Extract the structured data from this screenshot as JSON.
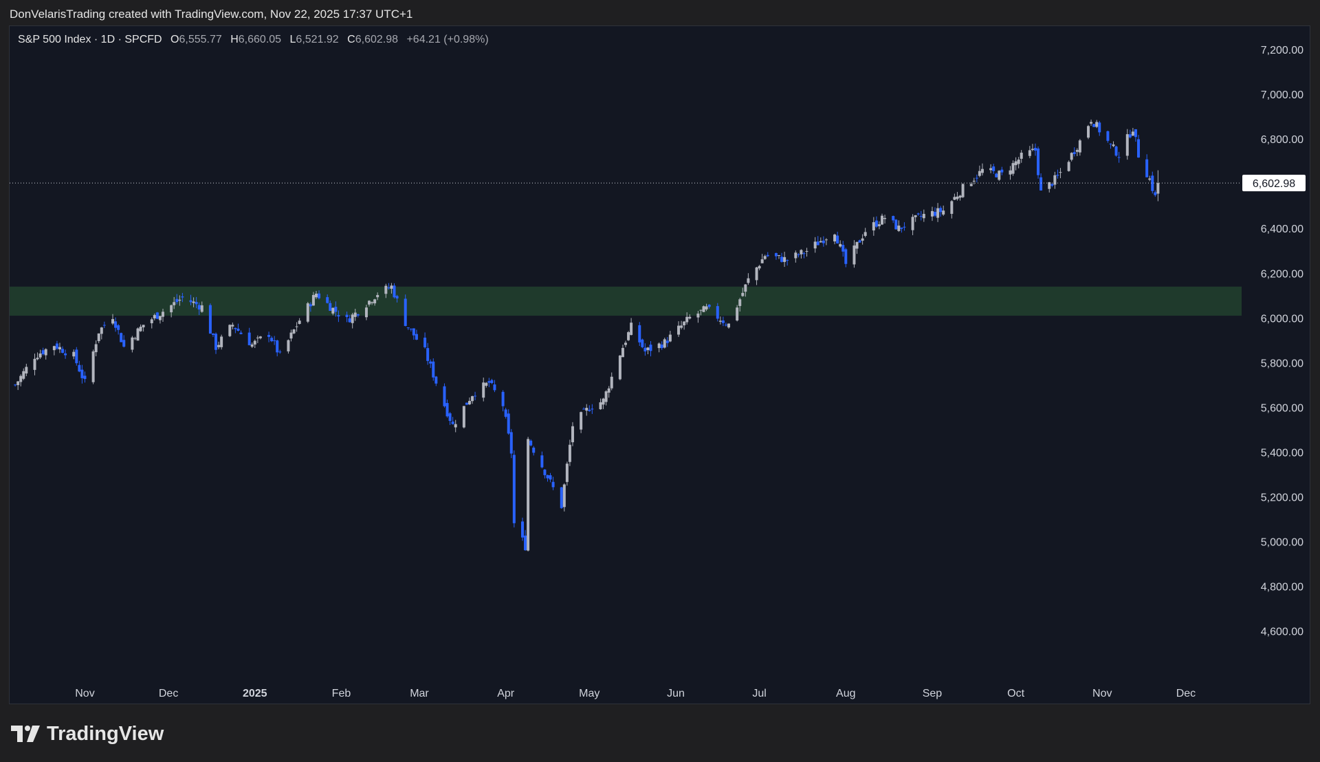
{
  "header": {
    "attribution": "DonVelarisTrading created with TradingView.com, Nov 22, 2025 17:37 UTC+1"
  },
  "legend": {
    "symbol": "S&P 500 Index · 1D · SPCFD",
    "open_label": "O",
    "open": "6,555.77",
    "high_label": "H",
    "high": "6,660.05",
    "low_label": "L",
    "low": "6,521.92",
    "close_label": "C",
    "close": "6,602.98",
    "change": "+64.21 (+0.98%)"
  },
  "footer": {
    "brand": "TradingView"
  },
  "colors": {
    "up": "#b2b5be",
    "down": "#2962ff",
    "zone": "#1f3a2c",
    "background": "#131722"
  },
  "chart_data": {
    "type": "candlestick",
    "title": "S&P 500 Index · 1D · SPCFD",
    "ylim": [
      4500,
      7300
    ],
    "y_ticks": [
      "7,200.00",
      "7,000.00",
      "6,800.00",
      "6,600.00",
      "6,400.00",
      "6,200.00",
      "6,000.00",
      "5,800.00",
      "5,600.00",
      "5,400.00",
      "5,200.00",
      "5,000.00",
      "4,800.00",
      "4,600.00"
    ],
    "y_tick_values": [
      7200,
      7000,
      6800,
      6600,
      6400,
      6200,
      6000,
      5800,
      5600,
      5400,
      5200,
      5000,
      4800,
      4600
    ],
    "x_ticks": [
      "Nov",
      "Dec",
      "2025",
      "Feb",
      "Mar",
      "Apr",
      "May",
      "Jun",
      "Jul",
      "Aug",
      "Sep",
      "Oct",
      "Nov",
      "Dec"
    ],
    "x_tick_dates": [
      "2024-11-01",
      "2024-12-01",
      "2025-01-01",
      "2025-02-01",
      "2025-03-01",
      "2025-04-01",
      "2025-05-01",
      "2025-06-01",
      "2025-07-01",
      "2025-08-01",
      "2025-09-01",
      "2025-10-01",
      "2025-11-01",
      "2025-12-01"
    ],
    "x_tick_bold": [
      false,
      false,
      true,
      false,
      false,
      false,
      false,
      false,
      false,
      false,
      false,
      false,
      false,
      false
    ],
    "x_range": [
      "2024-10-05",
      "2025-12-21"
    ],
    "last_price_label": "6,602.98",
    "last_price": 6602.98,
    "zone": {
      "low": 6010,
      "high": 6140
    },
    "close_points": [
      [
        "2024-10-07",
        5700
      ],
      [
        "2024-10-14",
        5830
      ],
      [
        "2024-10-21",
        5880
      ],
      [
        "2024-10-28",
        5830
      ],
      [
        "2024-11-01",
        5710
      ],
      [
        "2024-11-06",
        5940
      ],
      [
        "2024-11-11",
        6010
      ],
      [
        "2024-11-15",
        5870
      ],
      [
        "2024-11-22",
        5970
      ],
      [
        "2024-11-29",
        6030
      ],
      [
        "2024-12-06",
        6090
      ],
      [
        "2024-12-13",
        6050
      ],
      [
        "2024-12-18",
        5870
      ],
      [
        "2024-12-24",
        5970
      ],
      [
        "2024-12-31",
        5880
      ],
      [
        "2025-01-06",
        5930
      ],
      [
        "2025-01-10",
        5830
      ],
      [
        "2025-01-17",
        5990
      ],
      [
        "2025-01-23",
        6110
      ],
      [
        "2025-01-29",
        6040
      ],
      [
        "2025-02-03",
        5990
      ],
      [
        "2025-02-07",
        6030
      ],
      [
        "2025-02-14",
        6110
      ],
      [
        "2025-02-19",
        6140
      ],
      [
        "2025-02-24",
        5980
      ],
      [
        "2025-03-03",
        5850
      ],
      [
        "2025-03-10",
        5610
      ],
      [
        "2025-03-13",
        5520
      ],
      [
        "2025-03-20",
        5660
      ],
      [
        "2025-03-26",
        5710
      ],
      [
        "2025-03-31",
        5610
      ],
      [
        "2025-04-03",
        5400
      ],
      [
        "2025-04-04",
        5080
      ],
      [
        "2025-04-08",
        4980
      ],
      [
        "2025-04-09",
        5460
      ],
      [
        "2025-04-16",
        5290
      ],
      [
        "2025-04-21",
        5160
      ],
      [
        "2025-04-25",
        5520
      ],
      [
        "2025-05-01",
        5600
      ],
      [
        "2025-05-06",
        5630
      ],
      [
        "2025-05-12",
        5840
      ],
      [
        "2025-05-16",
        5960
      ],
      [
        "2025-05-21",
        5850
      ],
      [
        "2025-05-28",
        5890
      ],
      [
        "2025-06-06",
        6000
      ],
      [
        "2025-06-12",
        6040
      ],
      [
        "2025-06-20",
        5970
      ],
      [
        "2025-06-27",
        6170
      ],
      [
        "2025-07-03",
        6280
      ],
      [
        "2025-07-11",
        6260
      ],
      [
        "2025-07-18",
        6300
      ],
      [
        "2025-07-28",
        6390
      ],
      [
        "2025-08-01",
        6240
      ],
      [
        "2025-08-08",
        6390
      ],
      [
        "2025-08-15",
        6450
      ],
      [
        "2025-08-20",
        6400
      ],
      [
        "2025-08-29",
        6460
      ],
      [
        "2025-09-05",
        6480
      ],
      [
        "2025-09-12",
        6580
      ],
      [
        "2025-09-19",
        6660
      ],
      [
        "2025-09-26",
        6640
      ],
      [
        "2025-10-03",
        6720
      ],
      [
        "2025-10-08",
        6750
      ],
      [
        "2025-10-10",
        6560
      ],
      [
        "2025-10-16",
        6630
      ],
      [
        "2025-10-24",
        6790
      ],
      [
        "2025-10-28",
        6890
      ],
      [
        "2025-10-31",
        6840
      ],
      [
        "2025-11-04",
        6770
      ],
      [
        "2025-11-07",
        6730
      ],
      [
        "2025-11-12",
        6850
      ],
      [
        "2025-11-14",
        6730
      ],
      [
        "2025-11-18",
        6620
      ],
      [
        "2025-11-20",
        6540
      ],
      [
        "2025-11-21",
        6602.98
      ]
    ]
  }
}
